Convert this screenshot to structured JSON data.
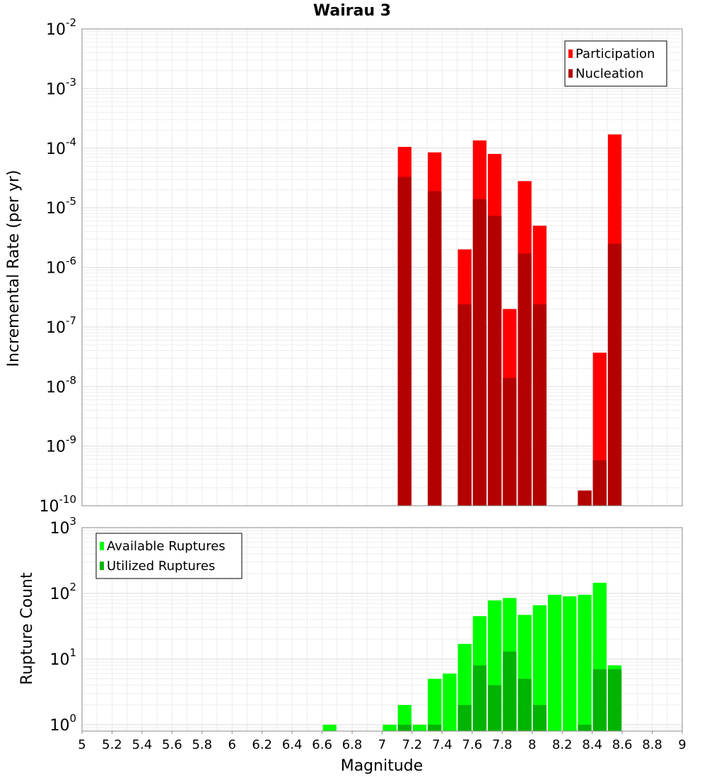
{
  "chart_data": [
    {
      "type": "bar",
      "title": "Wairau 3",
      "xlabel": "",
      "ylabel": "Incremental Rate (per yr)",
      "yscale": "log",
      "xlim": [
        5,
        9
      ],
      "ylim": [
        1e-10,
        0.01
      ],
      "ytick_exponents": [
        -10,
        -9,
        -8,
        -7,
        -6,
        -5,
        -4,
        -3,
        -2
      ],
      "ytick_base": "10",
      "bar_width": 0.1,
      "legend": {
        "position": "top-right",
        "entries": [
          "Participation",
          "Nucleation"
        ]
      },
      "series": [
        {
          "name": "Participation",
          "color": "#ff0000",
          "x": [
            7.15,
            7.35,
            7.55,
            7.65,
            7.75,
            7.85,
            7.95,
            8.05,
            8.35,
            8.45,
            8.55
          ],
          "values": [
            0.000105,
            8.5e-05,
            2e-06,
            0.000135,
            8e-05,
            2e-07,
            2.8e-05,
            5e-06,
            1.8e-10,
            3.7e-08,
            0.00017
          ]
        },
        {
          "name": "Nucleation",
          "color": "#b30000",
          "x": [
            7.15,
            7.35,
            7.55,
            7.65,
            7.75,
            7.85,
            7.95,
            8.05,
            8.35,
            8.45,
            8.55
          ],
          "values": [
            3.3e-05,
            1.9e-05,
            2.4e-07,
            1.4e-05,
            7.3e-06,
            1.4e-08,
            1.7e-06,
            2.4e-07,
            1.8e-10,
            5.8e-10,
            2.5e-06
          ]
        }
      ]
    },
    {
      "type": "bar",
      "title": "",
      "xlabel": "Magnitude",
      "ylabel": "Rupture Count",
      "yscale": "log",
      "xlim": [
        5,
        9
      ],
      "ylim": [
        0.8,
        1000
      ],
      "ytick_exponents": [
        0,
        1,
        2,
        3
      ],
      "ytick_base": "10",
      "bar_width": 0.1,
      "x_ticks": [
        "5",
        "5.2",
        "5.4",
        "5.6",
        "5.8",
        "6",
        "6.2",
        "6.4",
        "6.6",
        "6.8",
        "7",
        "7.2",
        "7.4",
        "7.6",
        "7.8",
        "8",
        "8.2",
        "8.4",
        "8.6",
        "8.8",
        "9"
      ],
      "legend": {
        "position": "top-left",
        "entries": [
          "Available Ruptures",
          "Utilized Ruptures"
        ]
      },
      "series": [
        {
          "name": "Available Ruptures",
          "color": "#00ff00",
          "x": [
            6.65,
            7.05,
            7.15,
            7.25,
            7.35,
            7.45,
            7.55,
            7.65,
            7.75,
            7.85,
            7.95,
            8.05,
            8.15,
            8.25,
            8.35,
            8.45,
            8.55
          ],
          "values": [
            1,
            1,
            2,
            1,
            5,
            6,
            17,
            45,
            78,
            85,
            47,
            66,
            95,
            90,
            95,
            145,
            8
          ]
        },
        {
          "name": "Utilized Ruptures",
          "color": "#00b300",
          "x": [
            7.15,
            7.35,
            7.55,
            7.65,
            7.75,
            7.85,
            7.95,
            8.05,
            8.35,
            8.45,
            8.55
          ],
          "values": [
            1,
            1,
            2,
            8,
            4,
            13,
            5,
            2,
            1,
            7,
            7
          ]
        }
      ]
    }
  ]
}
